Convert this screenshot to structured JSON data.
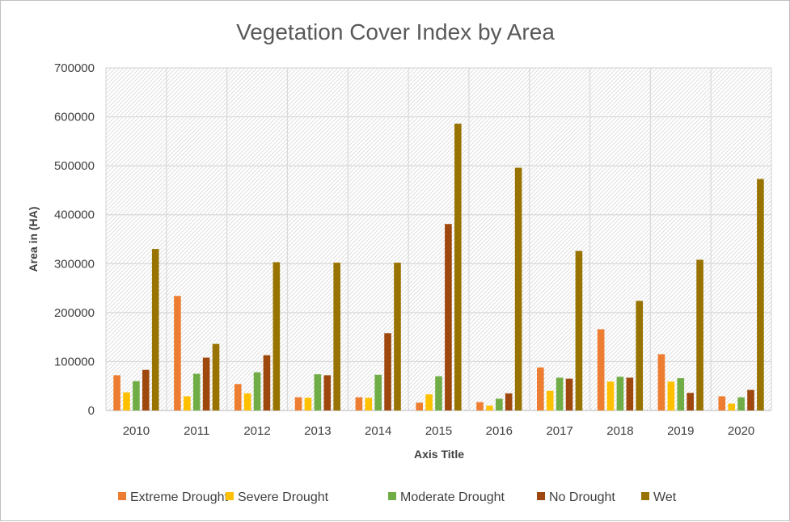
{
  "chart_data": {
    "type": "bar",
    "title": "Vegetation Cover Index by Area",
    "xlabel": "Axis Title",
    "ylabel": "Area in (HA)",
    "ylim": [
      0,
      700000
    ],
    "yticks": [
      "0",
      "100000",
      "200000",
      "300000",
      "400000",
      "500000",
      "600000",
      "700000"
    ],
    "categories": [
      "2010",
      "2011",
      "2012",
      "2013",
      "2014",
      "2015",
      "2016",
      "2017",
      "2018",
      "2019",
      "2020"
    ],
    "grid": true,
    "legend_position": "bottom",
    "series": [
      {
        "name": "Extreme Drought",
        "color": "#ed7d31",
        "values": [
          72000,
          234000,
          54000,
          27000,
          27000,
          16000,
          17000,
          88000,
          166000,
          115000,
          29000
        ]
      },
      {
        "name": "Severe Drought",
        "color": "#ffc000",
        "values": [
          37000,
          29000,
          35000,
          26000,
          26000,
          33000,
          10000,
          40000,
          59000,
          59000,
          14000
        ]
      },
      {
        "name": "Moderate Drought",
        "color": "#70ad47",
        "values": [
          60000,
          75000,
          78000,
          74000,
          73000,
          70000,
          24000,
          67000,
          69000,
          66000,
          27000
        ]
      },
      {
        "name": "No Drought",
        "color": "#9e480e",
        "values": [
          83000,
          108000,
          113000,
          72000,
          158000,
          381000,
          35000,
          65000,
          67000,
          36000,
          42000
        ]
      },
      {
        "name": "Wet",
        "color": "#997300",
        "values": [
          330000,
          136000,
          303000,
          302000,
          302000,
          586000,
          496000,
          326000,
          224000,
          308000,
          473000
        ]
      }
    ]
  }
}
